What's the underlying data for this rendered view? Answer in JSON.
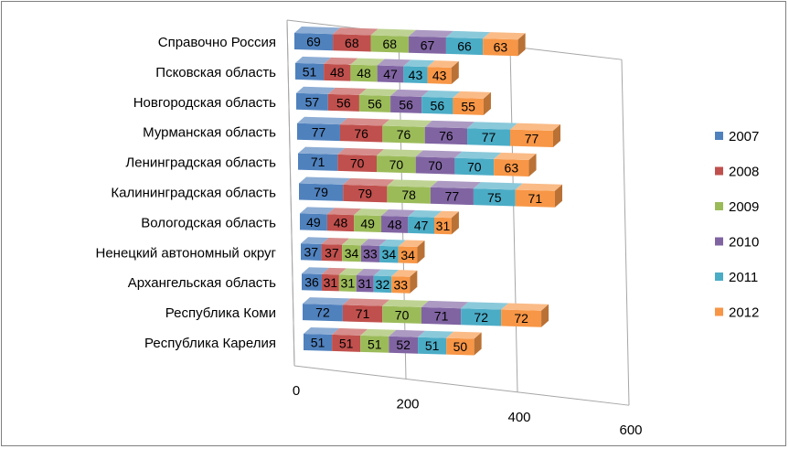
{
  "chart_data": {
    "type": "bar",
    "orientation": "horizontal",
    "stacked": true,
    "three_d": true,
    "title": "",
    "xlabel": "",
    "ylabel": "",
    "xlim": [
      0,
      600
    ],
    "x_ticks": [
      "0",
      "200",
      "400",
      "600"
    ],
    "grid": true,
    "legend_position": "right",
    "categories": [
      "Справочно Россия",
      "Псковская область",
      "Новгородская область",
      "Мурманская область",
      "Ленинградская область",
      "Калининградская область",
      "Вологодская область",
      "Ненецкий автономный округ",
      "Архангельская область",
      "Республика Коми",
      "Республика Карелия"
    ],
    "series": [
      {
        "name": "2007",
        "color": "#4F81BD",
        "values": [
          69,
          51,
          57,
          77,
          71,
          79,
          49,
          37,
          36,
          72,
          51
        ]
      },
      {
        "name": "2008",
        "color": "#C0504D",
        "values": [
          68,
          48,
          56,
          76,
          70,
          79,
          48,
          37,
          31,
          71,
          51
        ]
      },
      {
        "name": "2009",
        "color": "#9BBB59",
        "values": [
          68,
          48,
          56,
          76,
          70,
          78,
          49,
          34,
          31,
          70,
          51
        ]
      },
      {
        "name": "2010",
        "color": "#8064A2",
        "values": [
          67,
          47,
          56,
          76,
          70,
          77,
          48,
          33,
          31,
          71,
          52
        ]
      },
      {
        "name": "2011",
        "color": "#4BACC6",
        "values": [
          66,
          43,
          56,
          77,
          70,
          75,
          47,
          34,
          32,
          72,
          51
        ]
      },
      {
        "name": "2012",
        "color": "#F79646",
        "values": [
          63,
          43,
          55,
          77,
          63,
          71,
          31,
          34,
          33,
          72,
          50
        ]
      }
    ]
  }
}
